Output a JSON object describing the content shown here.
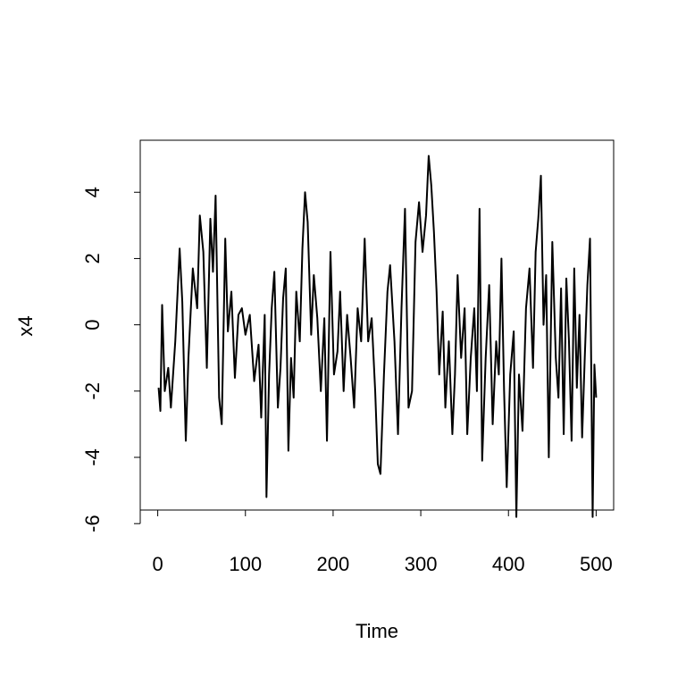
{
  "chart_data": {
    "type": "line",
    "xlabel": "Time",
    "ylabel": "x4",
    "color": "#000000",
    "x": [
      1,
      3,
      5,
      8,
      12,
      15,
      20,
      25,
      28,
      32,
      35,
      40,
      45,
      48,
      52,
      56,
      60,
      63,
      66,
      70,
      73,
      77,
      80,
      84,
      88,
      92,
      96,
      100,
      105,
      110,
      115,
      118,
      122,
      124,
      127,
      130,
      133,
      137,
      140,
      143,
      146,
      149,
      152,
      155,
      158,
      162,
      165,
      168,
      171,
      175,
      178,
      182,
      186,
      190,
      193,
      197,
      201,
      205,
      208,
      212,
      216,
      220,
      224,
      228,
      232,
      236,
      240,
      244,
      248,
      251,
      254,
      258,
      262,
      265,
      270,
      274,
      278,
      282,
      286,
      290,
      294,
      298,
      302,
      306,
      309,
      312,
      315,
      318,
      321,
      325,
      328,
      332,
      336,
      339,
      342,
      346,
      350,
      353,
      357,
      361,
      364,
      367,
      370,
      374,
      378,
      382,
      386,
      389,
      392,
      395,
      398,
      402,
      406,
      409,
      412,
      416,
      420,
      424,
      428,
      431,
      434,
      437,
      440,
      443,
      446,
      450,
      454,
      457,
      460,
      463,
      466,
      469,
      472,
      475,
      478,
      481,
      484,
      487,
      490,
      493,
      496,
      498,
      500
    ],
    "values": [
      -1.9,
      -2.6,
      0.6,
      -2,
      -1.3,
      -2.5,
      -0.5,
      2.3,
      0.7,
      -3.5,
      -1,
      1.7,
      0.5,
      3.3,
      2.2,
      -1.3,
      3.2,
      1.6,
      3.9,
      -2.2,
      -3,
      2.6,
      -0.2,
      1,
      -1.6,
      0.3,
      0.5,
      -0.3,
      0.3,
      -1.7,
      -0.6,
      -2.8,
      0.3,
      -5.2,
      -1.5,
      0.5,
      1.6,
      -2.5,
      -1.3,
      0.8,
      1.7,
      -3.8,
      -1,
      -2.2,
      1,
      -0.5,
      2.3,
      4,
      3.1,
      -0.3,
      1.5,
      0.2,
      -2,
      0.2,
      -3.5,
      2.2,
      -1.5,
      -0.8,
      1,
      -2,
      0.3,
      -1,
      -2.5,
      0.5,
      -0.5,
      2.6,
      -0.5,
      0.2,
      -2,
      -4.2,
      -4.5,
      -1.5,
      1,
      1.8,
      -0.5,
      -3.3,
      0.5,
      3.5,
      -2.5,
      -2,
      2.5,
      3.7,
      2.2,
      3.3,
      5.1,
      4.2,
      2.8,
      1,
      -1.5,
      0.4,
      -2.5,
      -0.5,
      -3.3,
      -1.5,
      1.5,
      -1,
      0.5,
      -3.3,
      -1,
      0.5,
      -2,
      3.5,
      -4.1,
      -1,
      1.2,
      -3,
      -0.5,
      -1.5,
      2,
      -2,
      -4.9,
      -1.5,
      -0.2,
      -5.8,
      -1.5,
      -3.2,
      0.5,
      1.7,
      -1.3,
      2.2,
      3.2,
      4.5,
      0,
      1.5,
      -4,
      2.5,
      -1,
      -2.2,
      1.1,
      -3.3,
      1.4,
      -0.5,
      -3.5,
      1.7,
      -1.9,
      0.3,
      -3.4,
      -1,
      1.2,
      2.6,
      -5.8,
      -1.2,
      -2.2
    ],
    "xlim": [
      -19.96,
      519.96
    ],
    "ylim": [
      -5.59,
      5.57
    ],
    "xticks": [
      0,
      100,
      200,
      300,
      400,
      500
    ],
    "yticks": [
      -6,
      -4,
      -2,
      0,
      2,
      4
    ]
  }
}
